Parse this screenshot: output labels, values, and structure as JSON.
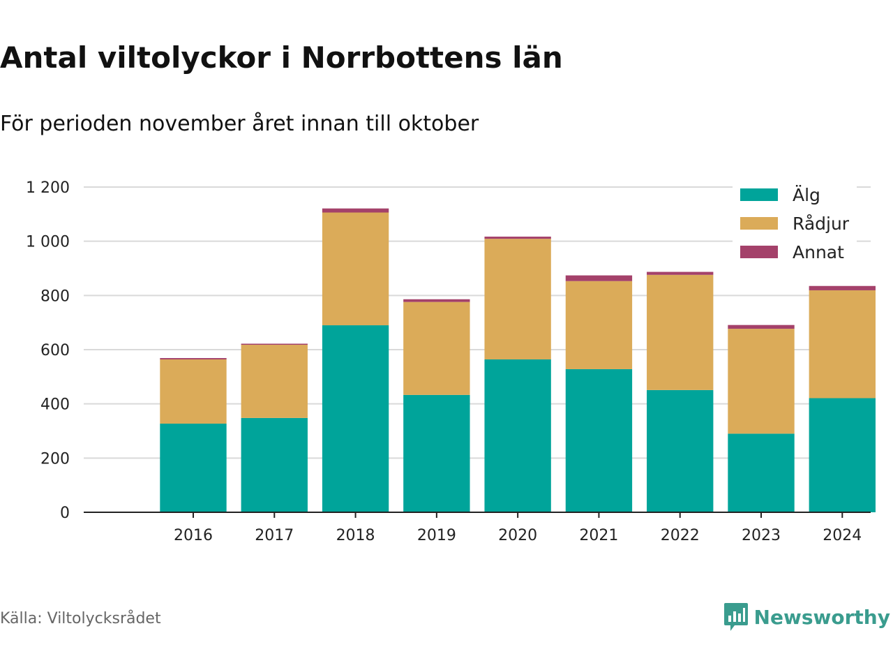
{
  "title": "Antal viltolyckor i Norrbottens län",
  "subtitle": "För perioden november året innan till oktober",
  "source": "Källa: Viltolycksrådet",
  "brand": {
    "name": "Newsworthy",
    "icon": "newsworthy-logo-icon",
    "color": "#3a9c8e"
  },
  "chart_data": {
    "type": "bar",
    "stacked": true,
    "categories": [
      "2016",
      "2017",
      "2018",
      "2019",
      "2020",
      "2021",
      "2022",
      "2023",
      "2024"
    ],
    "series": [
      {
        "name": "Älg",
        "color": "#00a49a",
        "values": [
          327,
          348,
          690,
          433,
          564,
          528,
          451,
          290,
          421
        ]
      },
      {
        "name": "Rådjur",
        "color": "#dbab59",
        "values": [
          237,
          270,
          416,
          343,
          445,
          325,
          425,
          387,
          398
        ]
      },
      {
        "name": "Annat",
        "color": "#a4416a",
        "values": [
          5,
          4,
          15,
          10,
          8,
          21,
          11,
          14,
          16
        ]
      }
    ],
    "ylim": [
      0,
      1200
    ],
    "yticks": [
      0,
      200,
      400,
      600,
      800,
      1000,
      1200
    ],
    "ytick_labels": [
      "0",
      "200",
      "400",
      "600",
      "800",
      "1 000",
      "1 200"
    ],
    "xlabel": "",
    "ylabel": "",
    "grid": true,
    "legend_position": "top-right"
  }
}
